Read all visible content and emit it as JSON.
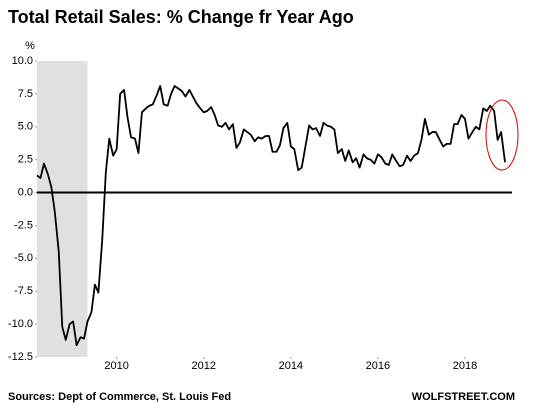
{
  "chart_data": {
    "type": "line",
    "title": "Total Retail Sales: % Change fr Year Ago",
    "y_unit_label": "%",
    "source": "Sources: Dept of Commerce, St. Louis Fed",
    "credit": "WOLFSTREET.COM",
    "xlim": [
      2008.17,
      2019.08
    ],
    "ylim": [
      -12.5,
      10
    ],
    "xticks": [
      2010,
      2012,
      2014,
      2016,
      2018
    ],
    "yticks": [
      -12.5,
      {
        "value": -10,
        "label": "-10.0"
      },
      -7.5,
      {
        "value": -5,
        "label": "-5.0"
      },
      -2.5,
      {
        "value": 0,
        "label": "0.0"
      },
      2.5,
      {
        "value": 5,
        "label": "5.0"
      },
      7.5,
      {
        "value": 10,
        "label": "10.0"
      }
    ],
    "shaded_range": [
      2008.17,
      2009.33
    ],
    "shade_color": "#e0e0e0",
    "zero_line": true,
    "series": [
      {
        "color": "#000000",
        "x": [
          2008.17,
          2008.25,
          2008.33,
          2008.42,
          2008.5,
          2008.58,
          2008.67,
          2008.75,
          2008.83,
          2008.92,
          2009,
          2009.08,
          2009.17,
          2009.25,
          2009.33,
          2009.42,
          2009.5,
          2009.58,
          2009.67,
          2009.75,
          2009.83,
          2009.92,
          2010,
          2010.08,
          2010.17,
          2010.25,
          2010.33,
          2010.42,
          2010.5,
          2010.58,
          2010.67,
          2010.75,
          2010.83,
          2010.92,
          2011,
          2011.08,
          2011.17,
          2011.25,
          2011.33,
          2011.42,
          2011.5,
          2011.58,
          2011.67,
          2011.75,
          2011.83,
          2011.92,
          2012,
          2012.08,
          2012.17,
          2012.25,
          2012.33,
          2012.42,
          2012.5,
          2012.58,
          2012.67,
          2012.75,
          2012.83,
          2012.92,
          2013,
          2013.08,
          2013.17,
          2013.25,
          2013.33,
          2013.42,
          2013.5,
          2013.58,
          2013.67,
          2013.75,
          2013.83,
          2013.92,
          2014,
          2014.08,
          2014.17,
          2014.25,
          2014.33,
          2014.42,
          2014.5,
          2014.58,
          2014.67,
          2014.75,
          2014.83,
          2014.92,
          2015,
          2015.08,
          2015.17,
          2015.25,
          2015.33,
          2015.42,
          2015.5,
          2015.58,
          2015.67,
          2015.75,
          2015.83,
          2015.92,
          2016,
          2016.08,
          2016.17,
          2016.25,
          2016.33,
          2016.42,
          2016.5,
          2016.58,
          2016.67,
          2016.75,
          2016.83,
          2016.92,
          2017,
          2017.08,
          2017.17,
          2017.25,
          2017.33,
          2017.42,
          2017.5,
          2017.58,
          2017.67,
          2017.75,
          2017.83,
          2017.92,
          2018,
          2018.08,
          2018.17,
          2018.25,
          2018.33,
          2018.42,
          2018.5,
          2018.58,
          2018.67,
          2018.75,
          2018.83,
          2018.92
        ],
        "values": [
          1.3,
          1.1,
          2.2,
          1.4,
          0.4,
          -1.5,
          -4.5,
          -10.2,
          -11.2,
          -10.0,
          -9.8,
          -11.6,
          -11.0,
          -11.1,
          -9.8,
          -9.1,
          -7.0,
          -7.6,
          -3.5,
          1.5,
          4.1,
          2.8,
          3.3,
          7.5,
          7.8,
          5.7,
          4.2,
          4.1,
          3.0,
          6.1,
          6.4,
          6.6,
          6.7,
          7.4,
          8.1,
          6.7,
          6.6,
          7.5,
          8.1,
          7.9,
          7.7,
          7.3,
          7.8,
          7.3,
          6.8,
          6.4,
          6.1,
          6.2,
          6.5,
          5.9,
          5.1,
          5.0,
          5.3,
          4.8,
          5.2,
          3.4,
          3.8,
          4.8,
          4.6,
          4.4,
          3.9,
          4.2,
          4.1,
          4.3,
          4.3,
          3.1,
          3.1,
          3.6,
          4.9,
          5.3,
          3.5,
          3.3,
          1.7,
          1.9,
          3.4,
          5.1,
          4.8,
          4.9,
          4.3,
          5.3,
          5.1,
          5.0,
          4.8,
          3.0,
          3.3,
          2.4,
          3.2,
          2.3,
          2.6,
          1.9,
          2.9,
          2.6,
          2.5,
          2.2,
          2.9,
          2.7,
          2.2,
          2.1,
          2.9,
          2.4,
          2.0,
          2.1,
          2.8,
          2.4,
          2.8,
          3.0,
          4.0,
          5.6,
          4.4,
          4.6,
          4.6,
          4.0,
          3.5,
          3.7,
          3.7,
          5.2,
          5.2,
          5.9,
          5.6,
          4.1,
          4.6,
          5.0,
          4.8,
          6.4,
          6.2,
          6.6,
          6.2,
          4.0,
          4.6,
          2.3
        ]
      }
    ]
  }
}
